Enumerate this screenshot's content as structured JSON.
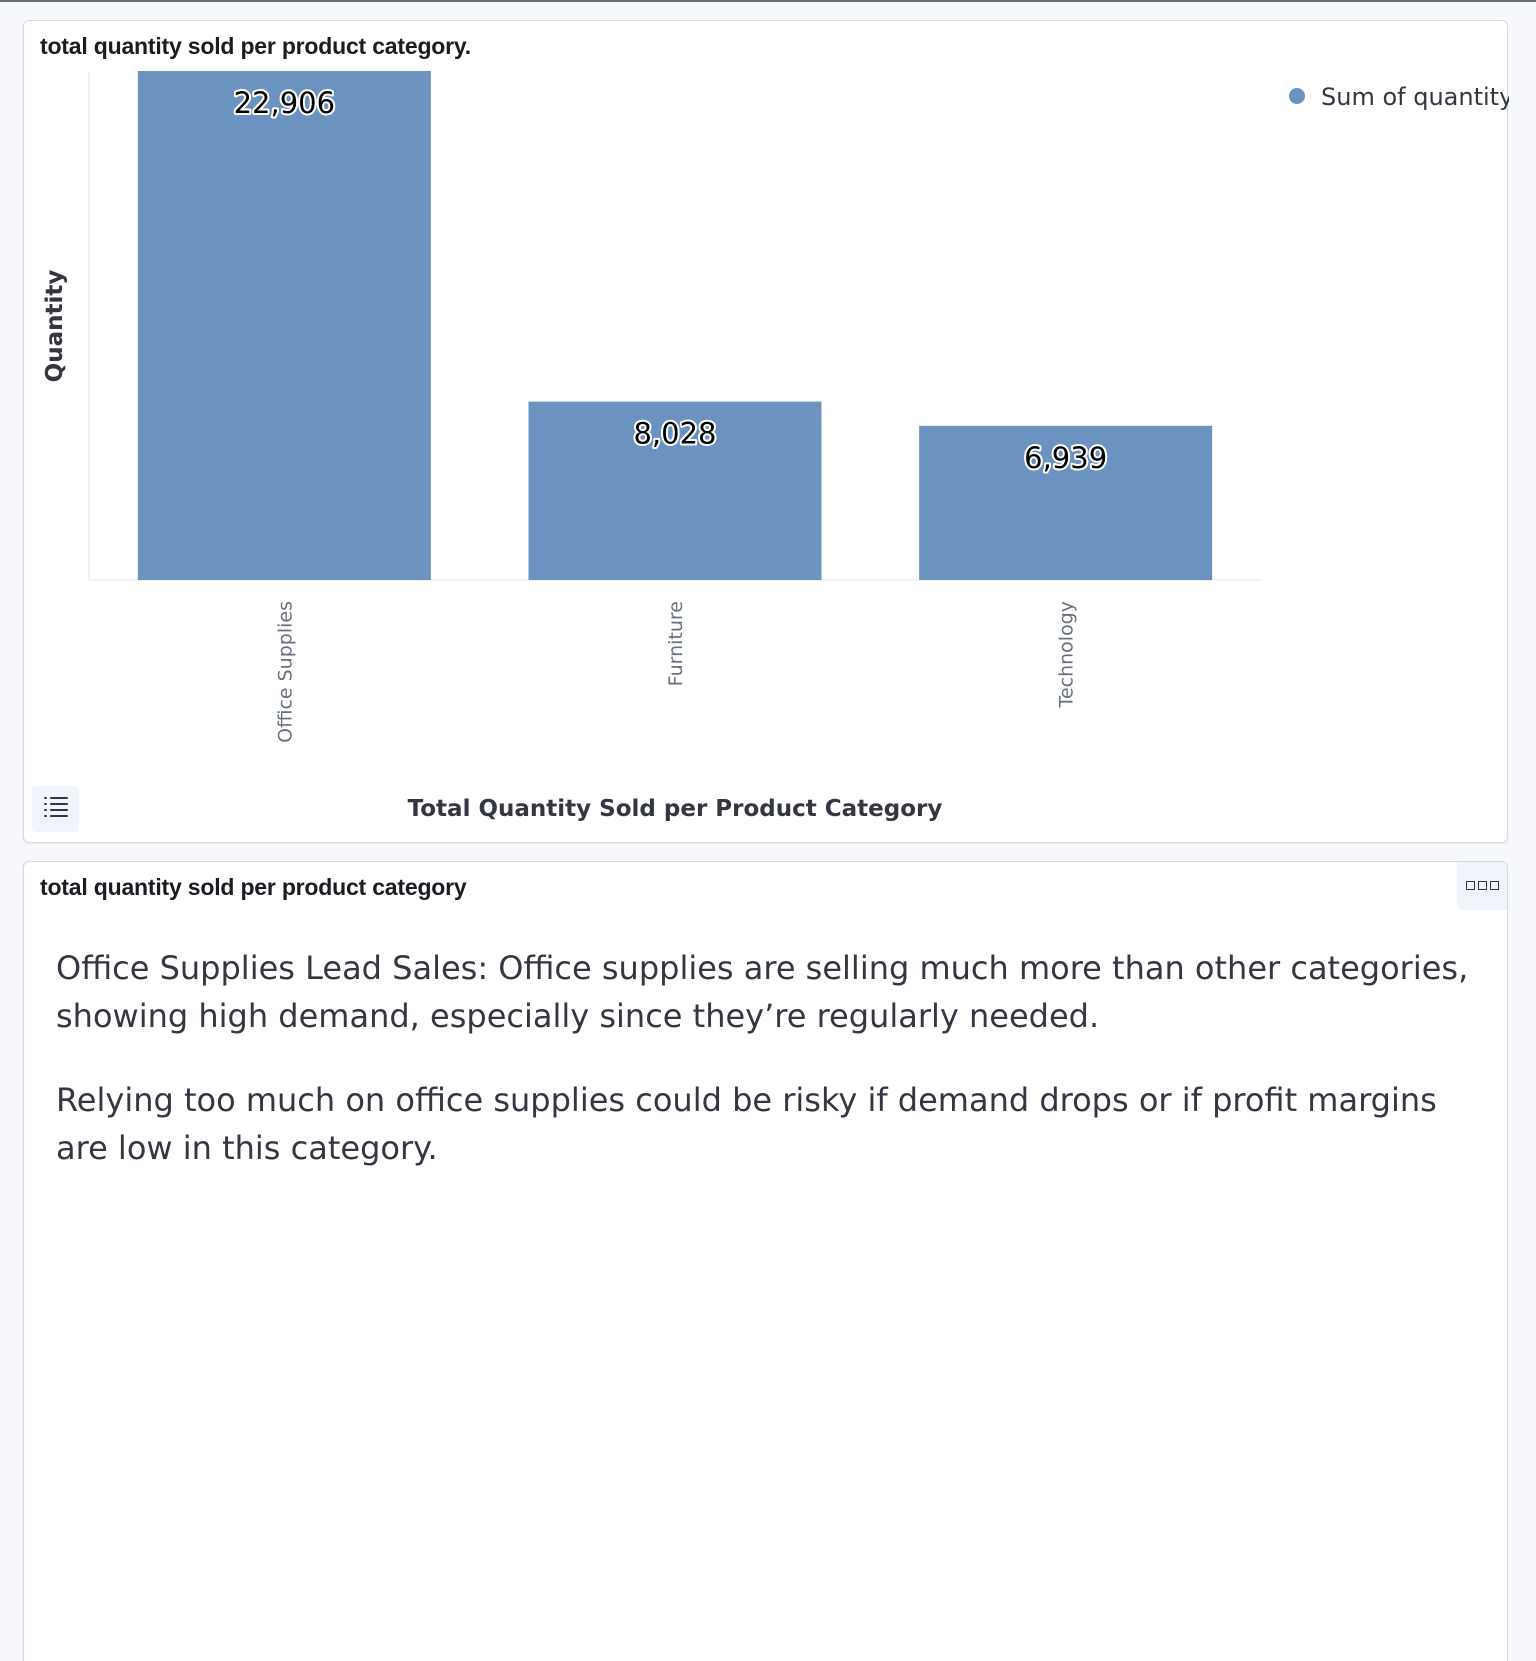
{
  "chart_panel": {
    "title": "total quantity sold per product category."
  },
  "text_panel": {
    "title": "total quantity sold per product category",
    "paragraphs": [
      "Office Supplies Lead Sales: Office supplies are selling much more than other categories, showing high demand, especially since they’re regularly needed.",
      "Relying too much on office supplies could be risky if demand drops or if profit margins are low in this category."
    ]
  },
  "icons": {
    "legend_toggle": "list-icon",
    "panel_menu": "more-options-icon"
  },
  "colors": {
    "bar": "#6c92bf"
  },
  "chart_data": {
    "type": "bar",
    "title": "",
    "xlabel": "Total Quantity Sold per Product Category",
    "ylabel": "Quantity",
    "categories": [
      "Office Supplies",
      "Furniture",
      "Technology"
    ],
    "series": [
      {
        "name": "Sum of quantity",
        "values": [
          22906,
          8028,
          6939
        ],
        "labels": [
          "22,906",
          "8,028",
          "6,939"
        ]
      }
    ],
    "ylim": [
      0,
      22906
    ],
    "legend": "top-right",
    "grid": false
  }
}
